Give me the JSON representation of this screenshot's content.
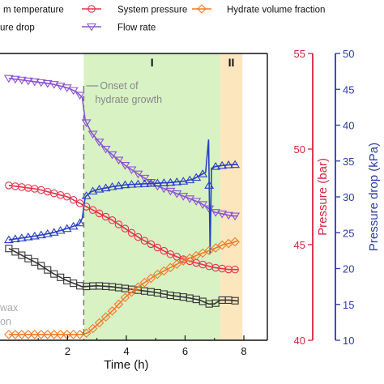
{
  "chart_data": {
    "type": "line",
    "xlabel": "Time (h)",
    "x_ticks": [
      2,
      4,
      6,
      8
    ],
    "xlim": [
      0,
      9
    ],
    "axes": {
      "pressure": {
        "label": "Pressure (bar)",
        "range": [
          40,
          55
        ],
        "ticks": [
          40,
          45,
          50,
          55
        ],
        "color": "#d6223f"
      },
      "pressure_drop": {
        "label": "Pressure drop (kPa)",
        "range": [
          10,
          50
        ],
        "ticks": [
          10,
          15,
          20,
          25,
          30,
          35,
          40,
          45,
          50
        ],
        "color": "#2c3aa8"
      }
    },
    "regions": [
      {
        "label": "I",
        "x": [
          2.55,
          7.2
        ],
        "color": "#d8f2c4"
      },
      {
        "label": "II",
        "x": [
          7.2,
          7.95
        ],
        "color": "#fbe6bd"
      }
    ],
    "onset": {
      "x": 2.55,
      "label_line1": "Onset of",
      "label_line2": "hydrate growth"
    },
    "partial_labels": [
      "wax",
      "on"
    ],
    "legend": [
      {
        "key": "temp",
        "label": "m temperature"
      },
      {
        "key": "pressure",
        "label": "System pressure"
      },
      {
        "key": "fraction",
        "label": "Hydrate volume fraction"
      },
      {
        "key": "drop",
        "label": "ure drop"
      },
      {
        "key": "flow",
        "label": "Flow rate"
      }
    ],
    "series": [
      {
        "key": "flow",
        "label": "Flow rate",
        "axis": "pressure",
        "color": "#8c52d4",
        "marker": "triangle-down",
        "x": [
          0,
          0.5,
          1.0,
          1.5,
          2.0,
          2.3,
          2.5,
          2.6,
          2.8,
          3.0,
          3.3,
          3.6,
          4.0,
          4.5,
          5.0,
          5.5,
          6.0,
          6.5,
          6.8,
          7.0,
          7.3,
          7.6,
          7.8
        ],
        "y": [
          53.7,
          53.6,
          53.5,
          53.4,
          53.2,
          53.0,
          52.7,
          51.5,
          50.9,
          50.5,
          50.0,
          49.6,
          49.1,
          48.6,
          48.1,
          47.8,
          47.5,
          47.2,
          46.9,
          46.7,
          46.6,
          46.5,
          46.5
        ]
      },
      {
        "key": "pressure",
        "label": "System pressure",
        "axis": "pressure",
        "color": "#e8304a",
        "marker": "circle",
        "x": [
          0,
          0.5,
          1.0,
          1.5,
          2.0,
          2.5,
          3.0,
          3.5,
          4.0,
          4.5,
          5.0,
          5.5,
          6.0,
          6.5,
          7.0,
          7.5,
          7.8
        ],
        "y": [
          48.1,
          48.0,
          47.9,
          47.7,
          47.5,
          47.1,
          46.7,
          46.3,
          45.8,
          45.3,
          44.9,
          44.5,
          44.2,
          44.0,
          43.8,
          43.7,
          43.7
        ]
      },
      {
        "key": "drop",
        "label": "Pressure drop",
        "axis": "pressure_drop",
        "color": "#2a40c4",
        "marker": "triangle-up",
        "x": [
          0,
          0.5,
          1.0,
          1.5,
          2.0,
          2.4,
          2.5,
          2.6,
          2.8,
          3.0,
          3.5,
          4.0,
          4.5,
          5.0,
          5.5,
          6.0,
          6.3,
          6.5,
          6.7,
          6.8,
          6.85,
          6.9,
          6.95,
          7.0,
          7.3,
          7.6,
          7.8
        ],
        "y": [
          24.0,
          24.3,
          24.6,
          25.0,
          25.6,
          26.2,
          27.0,
          30.0,
          30.7,
          31.0,
          31.4,
          31.7,
          31.8,
          31.9,
          32.0,
          32.2,
          32.5,
          33.0,
          33.4,
          38.0,
          22.0,
          34.0,
          34.0,
          34.2,
          34.4,
          34.5,
          34.5
        ]
      },
      {
        "key": "temp",
        "label": "m temperature",
        "axis": "pressure",
        "color": "#333333",
        "marker": "square",
        "x": [
          0,
          0.5,
          1.0,
          1.5,
          2.0,
          2.5,
          3.0,
          3.5,
          4.0,
          4.5,
          5.0,
          5.5,
          6.0,
          6.5,
          6.8,
          7.0,
          7.2,
          7.5,
          7.8
        ],
        "y": [
          44.8,
          44.4,
          44.0,
          43.5,
          43.1,
          42.8,
          42.85,
          42.8,
          42.7,
          42.6,
          42.5,
          42.35,
          42.25,
          42.1,
          41.9,
          41.9,
          42.1,
          42.1,
          42.05
        ]
      },
      {
        "key": "fraction",
        "label": "Hydrate volume fraction",
        "axis": "pressure",
        "color": "#f07a2a",
        "marker": "diamond",
        "x": [
          0,
          0.5,
          1.0,
          1.5,
          2.0,
          2.5,
          2.7,
          3.0,
          3.5,
          4.0,
          4.5,
          5.0,
          5.5,
          6.0,
          6.5,
          7.0,
          7.3,
          7.6,
          7.8
        ],
        "y": [
          40.3,
          40.3,
          40.3,
          40.3,
          40.3,
          40.3,
          40.4,
          40.8,
          41.5,
          42.3,
          42.9,
          43.4,
          43.8,
          44.2,
          44.5,
          44.8,
          45.0,
          45.1,
          45.2
        ]
      }
    ]
  }
}
